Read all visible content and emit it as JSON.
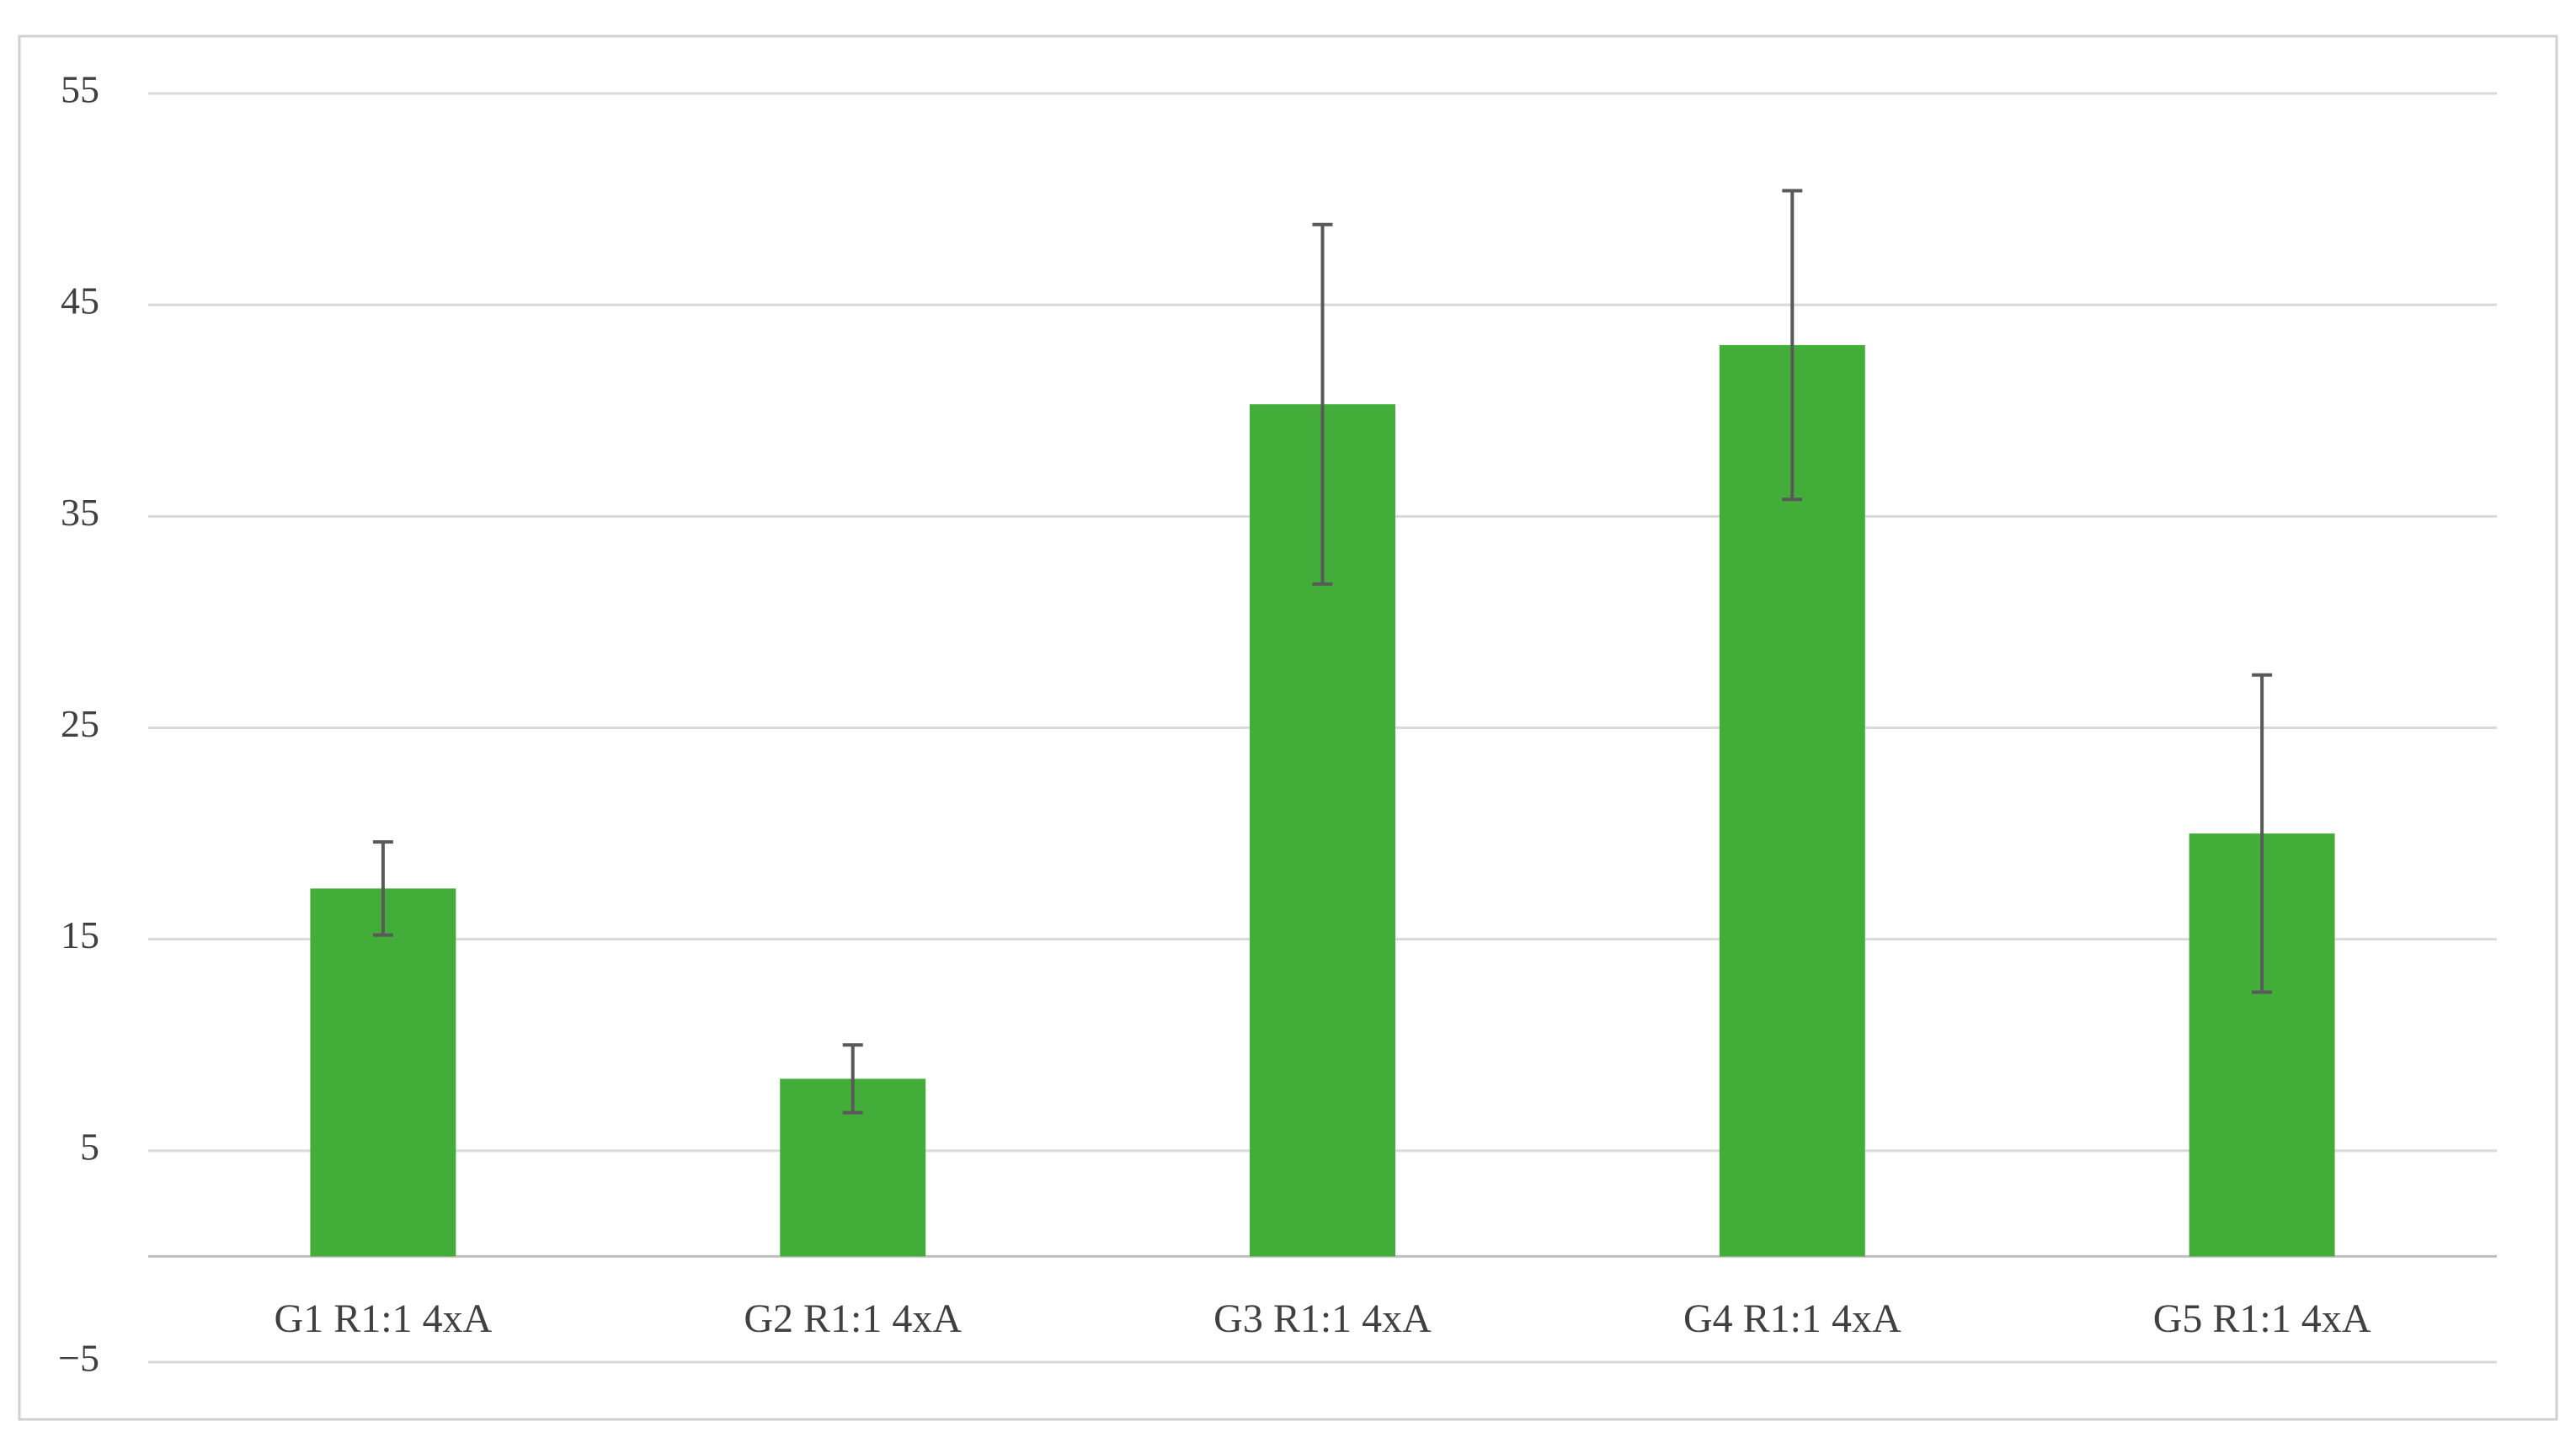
{
  "chart_data": {
    "type": "bar",
    "categories": [
      "G1 R1:1 4xA",
      "G2 R1:1 4xA",
      "G3 R1:1 4xA",
      "G4 R1:1 4xA",
      "G5 R1:1 4xA"
    ],
    "values": [
      17.4,
      8.4,
      40.3,
      43.1,
      20.0
    ],
    "errors": [
      2.2,
      1.6,
      8.5,
      7.3,
      7.5
    ],
    "color": "#43ad3a",
    "ylim": [
      -5,
      55
    ],
    "yticks": [
      {
        "value": -5,
        "label": "−5"
      },
      5,
      15,
      25,
      35,
      45,
      55
    ],
    "grid": true
  }
}
